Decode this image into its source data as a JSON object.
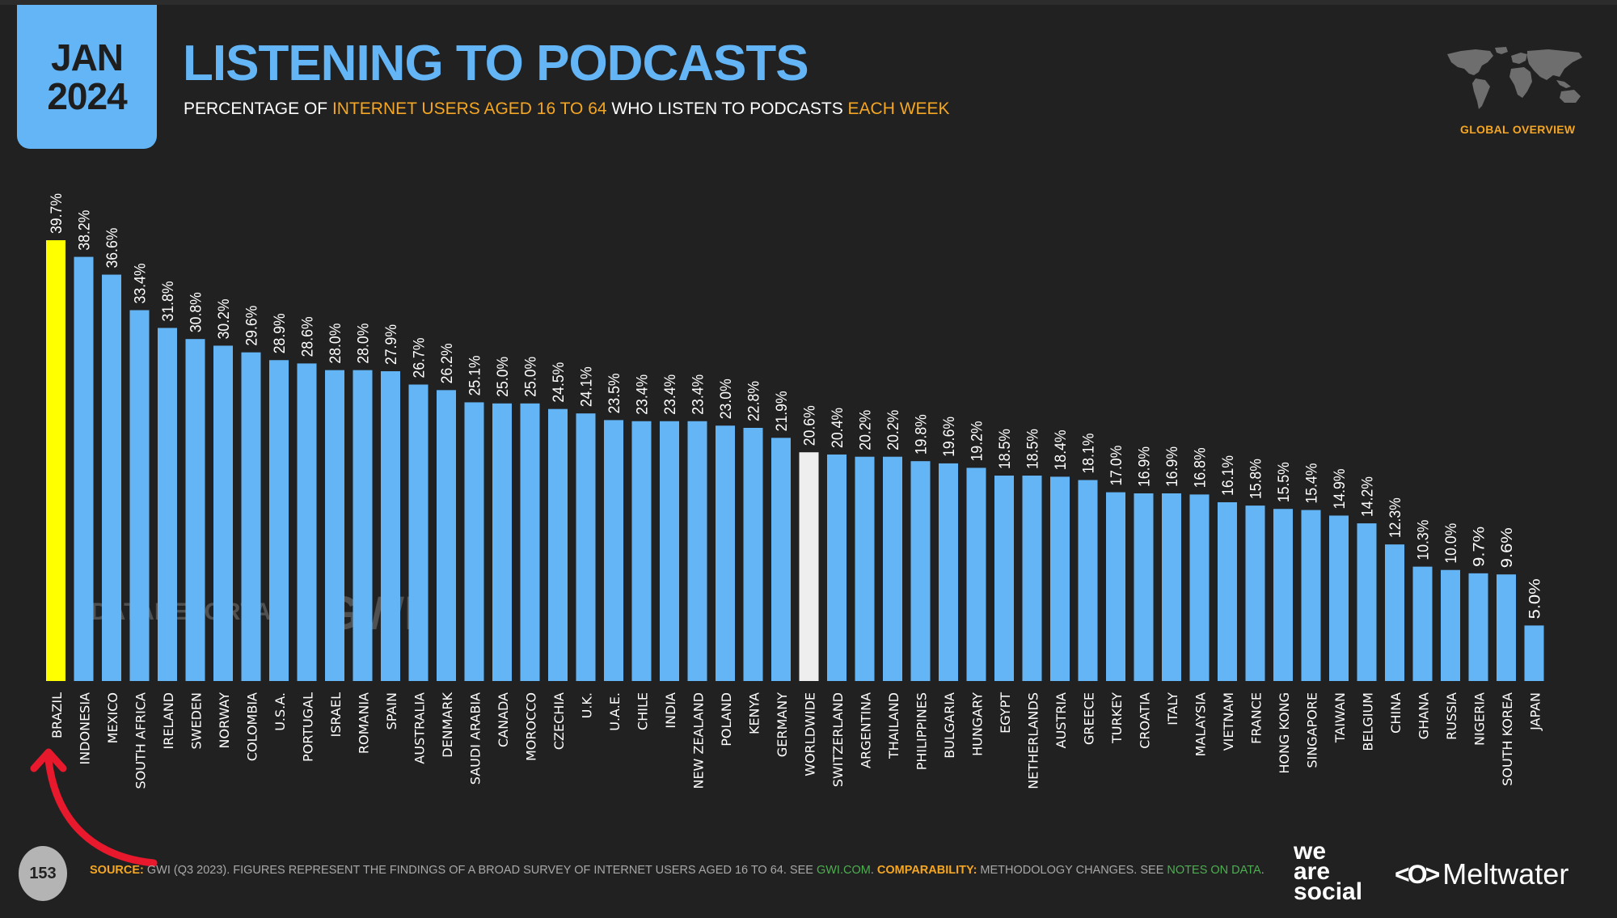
{
  "header": {
    "date_month": "JAN",
    "date_year": "2024",
    "title": "LISTENING TO PODCASTS",
    "subtitle_parts": {
      "p1": "PERCENTAGE OF ",
      "p2": "INTERNET USERS AGED 16 TO 64",
      "p3": " WHO LISTEN TO PODCASTS ",
      "p4": "EACH WEEK"
    },
    "region_label": "GLOBAL OVERVIEW",
    "map_icon": "world-map-icon"
  },
  "watermarks": {
    "datareportal": "DATAREPORTAL",
    "gwi": "GWI."
  },
  "footer": {
    "page_number": "153",
    "source_label": "SOURCE:",
    "source_text": " GWI (Q3 2023). FIGURES REPRESENT THE FINDINGS OF A BROAD SURVEY OF INTERNET USERS AGED 16 TO 64. SEE ",
    "source_link": "GWI.COM",
    "source_sep": ". ",
    "comparability_label": "COMPARABILITY:",
    "comparability_text": " METHODOLOGY CHANGES. SEE ",
    "notes_link": "NOTES ON DATA",
    "end": ".",
    "brand1": "we are social",
    "brand1_lines": [
      "we",
      "are",
      "social"
    ],
    "brand2": "Meltwater",
    "brand2_icon": "<O>"
  },
  "colors": {
    "background": "#212121",
    "bar": "#64b5f6",
    "highlight": "#ffff00",
    "worldwide": "#eeeeee",
    "accent": "#f5a623",
    "link": "#4caf50",
    "annotation_arrow": "#e8192c"
  },
  "chart_data": {
    "type": "bar",
    "title": "LISTENING TO PODCASTS",
    "subtitle": "PERCENTAGE OF INTERNET USERS AGED 16 TO 64 WHO LISTEN TO PODCASTS EACH WEEK",
    "xlabel": "",
    "ylabel": "",
    "ylim": [
      0,
      40
    ],
    "grid": false,
    "legend": "none",
    "value_suffix": "%",
    "highlighted_category": "BRAZIL",
    "reference_category": "WORLDWIDE",
    "categories": [
      "BRAZIL",
      "INDONESIA",
      "MEXICO",
      "SOUTH AFRICA",
      "IRELAND",
      "SWEDEN",
      "NORWAY",
      "COLOMBIA",
      "U.S.A.",
      "PORTUGAL",
      "ISRAEL",
      "ROMANIA",
      "SPAIN",
      "AUSTRALIA",
      "DENMARK",
      "SAUDI ARABIA",
      "CANADA",
      "MOROCCO",
      "CZECHIA",
      "U.K.",
      "U.A.E.",
      "CHILE",
      "INDIA",
      "NEW ZEALAND",
      "POLAND",
      "KENYA",
      "GERMANY",
      "WORLDWIDE",
      "SWITZERLAND",
      "ARGENTINA",
      "THAILAND",
      "PHILIPPINES",
      "BULGARIA",
      "HUNGARY",
      "EGYPT",
      "NETHERLANDS",
      "AUSTRIA",
      "GREECE",
      "TURKEY",
      "CROATIA",
      "ITALY",
      "MALAYSIA",
      "VIETNAM",
      "FRANCE",
      "HONG KONG",
      "SINGAPORE",
      "TAIWAN",
      "BELGIUM",
      "CHINA",
      "GHANA",
      "RUSSIA",
      "NIGERIA",
      "SOUTH KOREA",
      "JAPAN"
    ],
    "values": [
      39.7,
      38.2,
      36.6,
      33.4,
      31.8,
      30.8,
      30.2,
      29.6,
      28.9,
      28.6,
      28.0,
      28.0,
      27.9,
      26.7,
      26.2,
      25.1,
      25.0,
      25.0,
      24.5,
      24.1,
      23.5,
      23.4,
      23.4,
      23.4,
      23.0,
      22.8,
      21.9,
      20.6,
      20.4,
      20.2,
      20.2,
      19.8,
      19.6,
      19.2,
      18.5,
      18.5,
      18.4,
      18.1,
      17.0,
      16.9,
      16.9,
      16.8,
      16.1,
      15.8,
      15.5,
      15.4,
      14.9,
      14.2,
      12.3,
      10.3,
      10.0,
      9.7,
      9.6,
      5.0
    ]
  }
}
